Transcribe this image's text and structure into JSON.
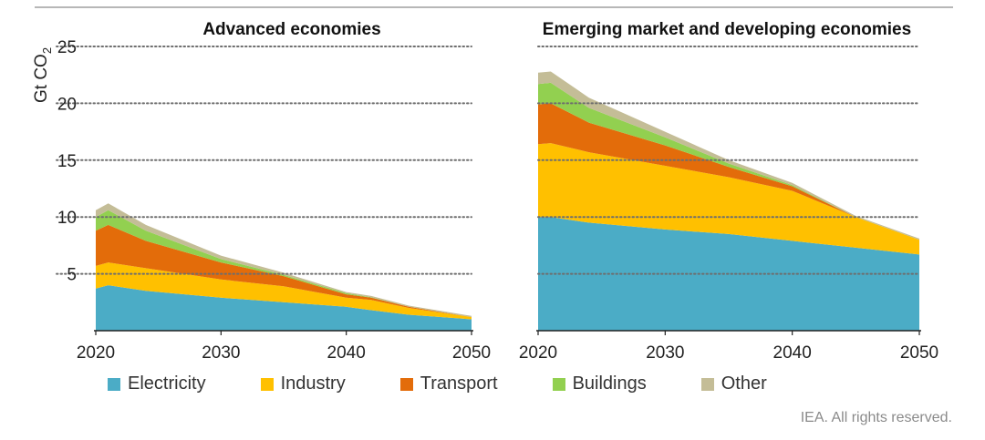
{
  "chart_data": [
    {
      "type": "area",
      "stacked": true,
      "title": "Advanced economies",
      "ylabel": "Gt CO2",
      "ylim": [
        0,
        25
      ],
      "yticks": [
        5,
        10,
        15,
        20,
        25
      ],
      "xlim": [
        2020,
        2050
      ],
      "xticks": [
        2020,
        2030,
        2040,
        2050
      ],
      "x": [
        2020,
        2021,
        2024,
        2030,
        2035,
        2040,
        2042,
        2045,
        2050
      ],
      "series": [
        {
          "name": "Electricity",
          "values": [
            3.7,
            4.0,
            3.5,
            2.9,
            2.5,
            2.1,
            1.8,
            1.4,
            1.0
          ]
        },
        {
          "name": "Industry",
          "values": [
            2.0,
            2.0,
            2.0,
            1.6,
            1.4,
            0.8,
            0.9,
            0.6,
            0.2
          ]
        },
        {
          "name": "Transport",
          "values": [
            3.1,
            3.3,
            2.4,
            1.5,
            0.9,
            0.3,
            0.2,
            0.1,
            0.0
          ]
        },
        {
          "name": "Buildings",
          "values": [
            1.2,
            1.3,
            0.9,
            0.3,
            0.1,
            0.1,
            0.05,
            0.0,
            0.0
          ]
        },
        {
          "name": "Other",
          "values": [
            0.6,
            0.6,
            0.5,
            0.3,
            0.2,
            0.1,
            0.1,
            0.1,
            0.1
          ]
        }
      ]
    },
    {
      "type": "area",
      "stacked": true,
      "title": "Emerging market and developing economies",
      "ylabel": "",
      "ylim": [
        0,
        25
      ],
      "yticks": [
        5,
        10,
        15,
        20,
        25
      ],
      "xlim": [
        2020,
        2050
      ],
      "xticks": [
        2020,
        2030,
        2040,
        2050
      ],
      "x": [
        2020,
        2021,
        2024,
        2030,
        2035,
        2040,
        2045,
        2050
      ],
      "series": [
        {
          "name": "Electricity",
          "values": [
            10.0,
            10.0,
            9.5,
            8.9,
            8.5,
            7.9,
            7.3,
            6.7
          ]
        },
        {
          "name": "Industry",
          "values": [
            6.4,
            6.5,
            6.2,
            5.6,
            5.0,
            4.4,
            2.7,
            1.3
          ]
        },
        {
          "name": "Transport",
          "values": [
            3.5,
            3.5,
            2.6,
            1.8,
            0.9,
            0.4,
            0.0,
            0.0
          ]
        },
        {
          "name": "Buildings",
          "values": [
            1.8,
            1.8,
            1.3,
            0.7,
            0.3,
            0.1,
            0.0,
            0.0
          ]
        },
        {
          "name": "Other",
          "values": [
            1.0,
            1.0,
            0.9,
            0.5,
            0.3,
            0.2,
            0.1,
            0.1
          ]
        }
      ]
    }
  ],
  "legend": [
    {
      "name": "Electricity",
      "color": "#4bacc6"
    },
    {
      "name": "Industry",
      "color": "#ffc000"
    },
    {
      "name": "Transport",
      "color": "#e36c0a"
    },
    {
      "name": "Buildings",
      "color": "#92d050"
    },
    {
      "name": "Other",
      "color": "#c4bd97"
    }
  ],
  "footer": "IEA. All rights reserved."
}
